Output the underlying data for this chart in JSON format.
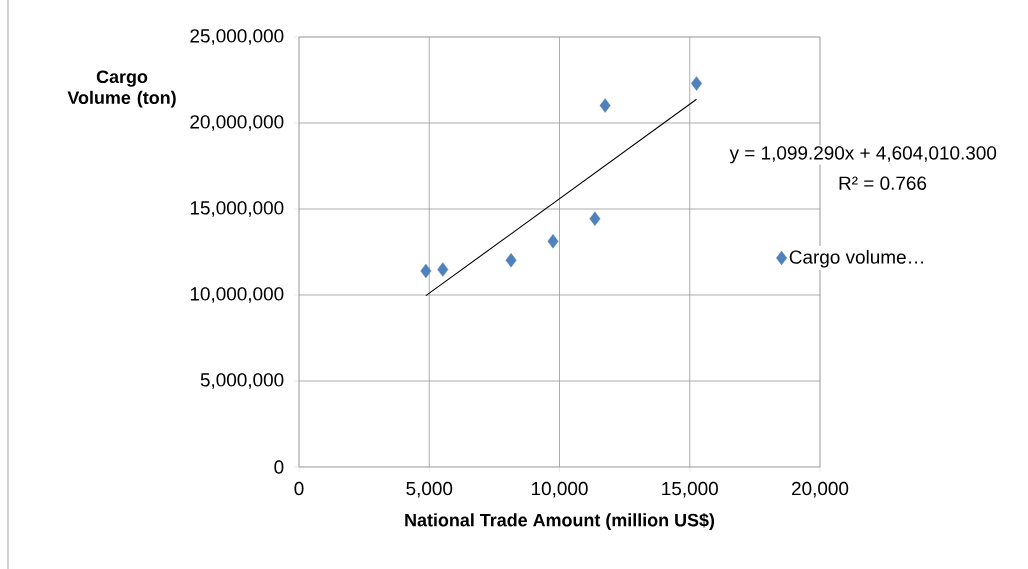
{
  "chart_data": {
    "type": "scatter",
    "xlabel": "National Trade Amount (million US$)",
    "ylabel": "Cargo Volume (ton)",
    "xlim": [
      0,
      20000
    ],
    "ylim": [
      0,
      25000000
    ],
    "xticks": [
      0,
      {
        "value": 5000,
        "label": "5,000"
      },
      {
        "value": 10000,
        "label": "10,000"
      },
      {
        "value": 15000,
        "label": "15,000"
      },
      {
        "value": 20000,
        "label": "20,000"
      }
    ],
    "yticks": [
      0,
      {
        "value": 5000000,
        "label": "5,000,000"
      },
      {
        "value": 10000000,
        "label": "10,000,000"
      },
      {
        "value": 15000000,
        "label": "15,000,000"
      },
      {
        "value": 20000000,
        "label": "20,000,000"
      },
      {
        "value": 25000000,
        "label": "25,000,000"
      }
    ],
    "grid": true,
    "legend": "right",
    "marker": "diamond",
    "x": [
      4870,
      5520,
      8140,
      9750,
      11360,
      11750,
      15260
    ],
    "series": [
      {
        "name": "Cargo volume…",
        "color": "#4f81bd",
        "values": [
          11400000,
          11480000,
          12020000,
          13120000,
          14430000,
          21010000,
          22290000
        ]
      },
      {
        "type": "line",
        "marker": "none",
        "color": "#000000",
        "x": [
          4870,
          15260
        ],
        "values": [
          9960000,
          21380000
        ]
      }
    ],
    "annotations": [
      "y = 1,099.290x + 4,604,010.300",
      "R² = 0.766"
    ]
  }
}
